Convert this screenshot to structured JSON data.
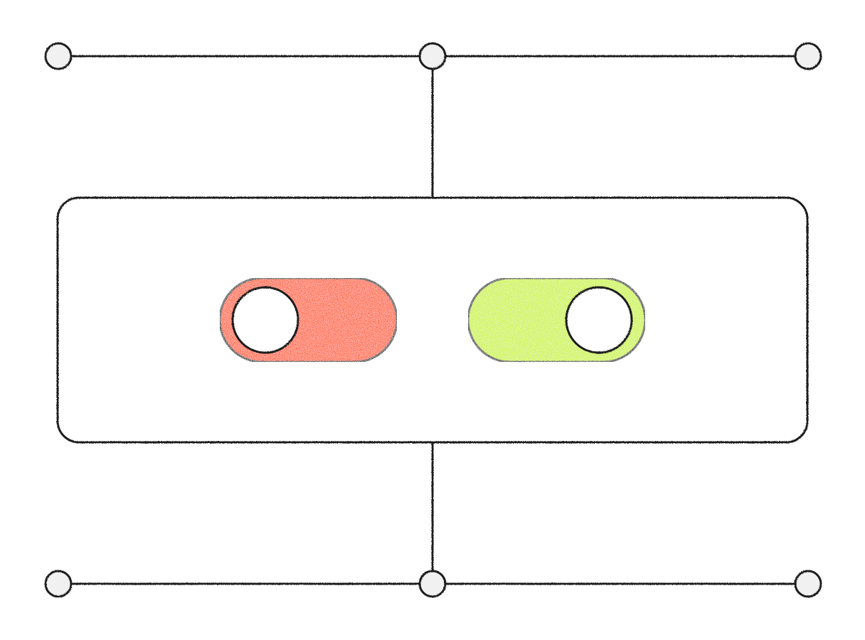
{
  "colors": {
    "background": "#ffffff",
    "stroke": "#1c1c1c",
    "node_fill": "#f1f1f1",
    "panel_fill": "#ffffff",
    "toggle_off_track": "#ff4d12",
    "toggle_on_track": "#c8f21a",
    "knob_fill": "#ffffff"
  },
  "diagram": {
    "top_rail": {
      "nodes": [
        "left",
        "center",
        "right"
      ]
    },
    "bottom_rail": {
      "nodes": [
        "left",
        "center",
        "right"
      ]
    },
    "panel": {
      "toggles": [
        {
          "name": "toggle-off",
          "state": "off",
          "color_key": "toggle_off_track"
        },
        {
          "name": "toggle-on",
          "state": "on",
          "color_key": "toggle_on_track"
        }
      ]
    }
  }
}
